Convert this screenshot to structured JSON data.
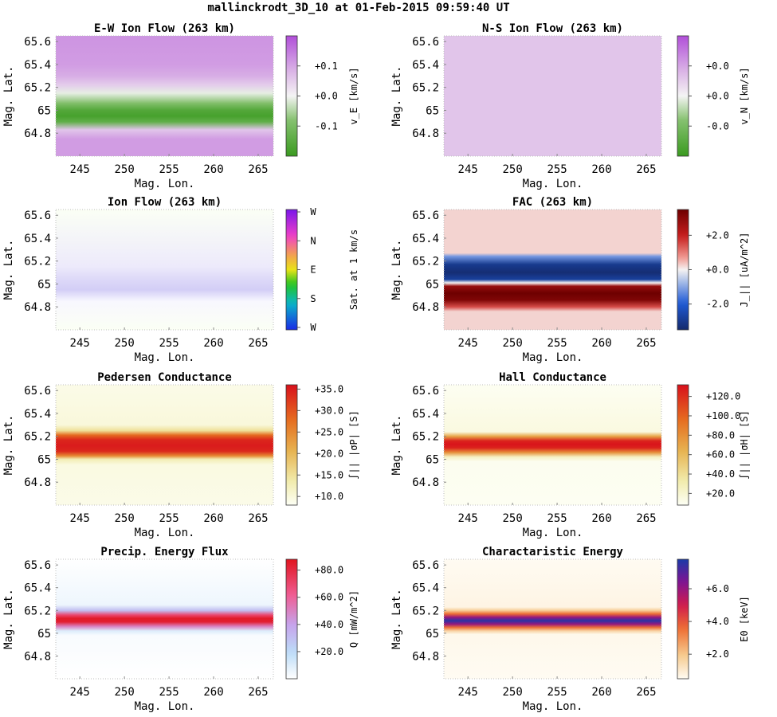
{
  "suptitle": "mallinckrodt_3D_10 at 01-Feb-2015 09:59:40 UT",
  "chart_data": [
    {
      "type": "heatmap",
      "title": "E-W Ion Flow (263 km)",
      "xlabel": "Mag. Lon.",
      "ylabel": "Mag. Lat.",
      "xticks": [
        "245",
        "250",
        "255",
        "260",
        "265"
      ],
      "yticks": [
        "65.6",
        "65.4",
        "65.2",
        "65",
        "64.8"
      ],
      "xlim": [
        242.3,
        266.7
      ],
      "ylim": [
        64.6,
        65.65
      ],
      "colorbar": {
        "colormap": "green-white-purple",
        "label": "v_E [km/s]",
        "ticks": [
          "+0.1",
          "+0.0",
          "-0.1"
        ],
        "range": [
          -0.2,
          0.2
        ]
      },
      "profile": {
        "description": "latitude profile of value, uniform in longitude",
        "lat": [
          64.6,
          64.75,
          64.83,
          64.9,
          64.95,
          65.0,
          65.06,
          65.1,
          65.15,
          65.22,
          65.3,
          65.4,
          65.65
        ],
        "value": [
          0.11,
          0.11,
          0.06,
          -0.14,
          -0.18,
          -0.16,
          -0.09,
          -0.05,
          -0.01,
          0.05,
          0.09,
          0.11,
          0.12
        ]
      }
    },
    {
      "type": "heatmap",
      "title": "N-S Ion Flow (263 km)",
      "xlabel": "Mag. Lon.",
      "ylabel": "Mag. Lat.",
      "xticks": [
        "245",
        "250",
        "255",
        "260",
        "265"
      ],
      "yticks": [
        "65.6",
        "65.4",
        "65.2",
        "65",
        "64.8"
      ],
      "xlim": [
        242.3,
        266.7
      ],
      "ylim": [
        64.6,
        65.65
      ],
      "colorbar": {
        "colormap": "green-white-purple",
        "label": "v_N [km/s]",
        "ticks": [
          "+0.0",
          "+0.0",
          "-0.0"
        ],
        "range": [
          -0.2,
          0.2
        ]
      },
      "profile": {
        "lat": [
          64.6,
          65.65
        ],
        "value": [
          0.06,
          0.06
        ]
      }
    },
    {
      "type": "heatmap",
      "title": "Ion Flow (263 km)",
      "xlabel": "Mag. Lon.",
      "ylabel": "Mag. Lat.",
      "xticks": [
        "245",
        "250",
        "255",
        "260",
        "265"
      ],
      "yticks": [
        "65.6",
        "65.4",
        "65.2",
        "65",
        "64.8"
      ],
      "xlim": [
        242.3,
        266.7
      ],
      "ylim": [
        64.6,
        65.65
      ],
      "colorbar": {
        "colormap": "direction-hue",
        "label": "Sat. at 1 km/s",
        "ticks": [
          "W",
          "N",
          "E",
          "S",
          "W"
        ]
      },
      "profile": {
        "lat": [
          64.6,
          64.85,
          64.95,
          65.05,
          65.15,
          65.65
        ],
        "value": [
          0.0,
          0.02,
          0.12,
          0.09,
          0.05,
          0.0
        ]
      }
    },
    {
      "type": "heatmap",
      "title": "FAC (263 km)",
      "xlabel": "Mag. Lon.",
      "ylabel": "Mag. Lat.",
      "xticks": [
        "245",
        "250",
        "255",
        "260",
        "265"
      ],
      "yticks": [
        "65.6",
        "65.4",
        "65.2",
        "65",
        "64.8"
      ],
      "xlim": [
        242.3,
        266.7
      ],
      "ylim": [
        64.6,
        65.65
      ],
      "colorbar": {
        "colormap": "blue-white-red",
        "label": "J_|| [uA/m^2]",
        "ticks": [
          "+2.0",
          "+0.0",
          "-2.0"
        ],
        "range": [
          -3.5,
          3.5
        ]
      },
      "profile": {
        "lat": [
          64.6,
          64.76,
          64.8,
          64.86,
          64.92,
          64.98,
          65.01,
          65.04,
          65.1,
          65.17,
          65.24,
          65.27,
          65.65
        ],
        "value": [
          0.25,
          0.25,
          1.5,
          3.2,
          3.5,
          2.8,
          0.0,
          -2.8,
          -3.4,
          -3.0,
          -1.2,
          0.25,
          0.25
        ]
      }
    },
    {
      "type": "heatmap",
      "title": "Pedersen Conductance",
      "xlabel": "Mag. Lon.",
      "ylabel": "Mag. Lat.",
      "xticks": [
        "245",
        "250",
        "255",
        "260",
        "265"
      ],
      "yticks": [
        "65.6",
        "65.4",
        "65.2",
        "65",
        "64.8"
      ],
      "xlim": [
        242.3,
        266.7
      ],
      "ylim": [
        64.6,
        65.65
      ],
      "colorbar": {
        "colormap": "white-yellow-orange-red",
        "label": "∫|| |σP| [S]",
        "ticks": [
          "+35.0",
          "+30.0",
          "+25.0",
          "+20.0",
          "+15.0",
          "+10.0"
        ],
        "range": [
          8,
          36
        ]
      },
      "profile": {
        "lat": [
          64.6,
          64.95,
          65.0,
          65.03,
          65.07,
          65.12,
          65.17,
          65.21,
          65.25,
          65.3,
          65.65
        ],
        "value": [
          9,
          9.5,
          13,
          25,
          34,
          35,
          34,
          28,
          15,
          10,
          9
        ]
      }
    },
    {
      "type": "heatmap",
      "title": "Hall Conductance",
      "xlabel": "Mag. Lon.",
      "ylabel": "Mag. Lat.",
      "xticks": [
        "245",
        "250",
        "255",
        "260",
        "265"
      ],
      "yticks": [
        "65.6",
        "65.4",
        "65.2",
        "65",
        "64.8"
      ],
      "xlim": [
        242.3,
        266.7
      ],
      "ylim": [
        64.6,
        65.65
      ],
      "colorbar": {
        "colormap": "white-yellow-orange-red",
        "label": "∫|| |σH| [S]",
        "ticks": [
          "+120.0",
          "+100.0",
          "+80.0",
          "+60.0",
          "+40.0",
          "+20.0"
        ],
        "range": [
          8,
          132
        ]
      },
      "profile": {
        "lat": [
          64.6,
          64.98,
          65.02,
          65.06,
          65.1,
          65.13,
          65.16,
          65.2,
          65.24,
          65.65
        ],
        "value": [
          9,
          10,
          25,
          80,
          125,
          130,
          125,
          70,
          15,
          9
        ]
      }
    },
    {
      "type": "heatmap",
      "title": "Precip. Energy Flux",
      "xlabel": "Mag. Lon.",
      "ylabel": "Mag. Lat.",
      "xticks": [
        "245",
        "250",
        "255",
        "260",
        "265"
      ],
      "yticks": [
        "65.6",
        "65.4",
        "65.2",
        "65",
        "64.8"
      ],
      "xlim": [
        242.3,
        266.7
      ],
      "ylim": [
        64.6,
        65.65
      ],
      "colorbar": {
        "colormap": "white-blue-pink-red",
        "label": "Q [mW/m^2]",
        "ticks": [
          "+80.0",
          "+60.0",
          "+40.0",
          "+20.0"
        ],
        "range": [
          0,
          88
        ]
      },
      "profile": {
        "lat": [
          64.6,
          64.98,
          65.02,
          65.06,
          65.1,
          65.13,
          65.16,
          65.2,
          65.25,
          65.65
        ],
        "value": [
          0,
          2,
          10,
          50,
          84,
          86,
          70,
          30,
          5,
          0
        ]
      }
    },
    {
      "type": "heatmap",
      "title": "Charactaristic Energy",
      "xlabel": "Mag. Lon.",
      "ylabel": "Mag. Lat.",
      "xticks": [
        "245",
        "250",
        "255",
        "260",
        "265"
      ],
      "yticks": [
        "65.6",
        "65.4",
        "65.2",
        "65",
        "64.8"
      ],
      "xlim": [
        242.3,
        266.7
      ],
      "ylim": [
        64.6,
        65.65
      ],
      "colorbar": {
        "colormap": "white-orange-red-purple-blue",
        "label": "E0 [keV]",
        "ticks": [
          "+6.0",
          "+4.0",
          "+2.0"
        ],
        "range": [
          0.5,
          7.8
        ]
      },
      "profile": {
        "lat": [
          64.6,
          64.99,
          65.02,
          65.05,
          65.08,
          65.11,
          65.14,
          65.17,
          65.2,
          65.23,
          65.65
        ],
        "value": [
          0.5,
          0.6,
          1.6,
          3.5,
          6.0,
          7.6,
          6.0,
          3.6,
          1.8,
          0.7,
          0.5
        ]
      }
    }
  ]
}
